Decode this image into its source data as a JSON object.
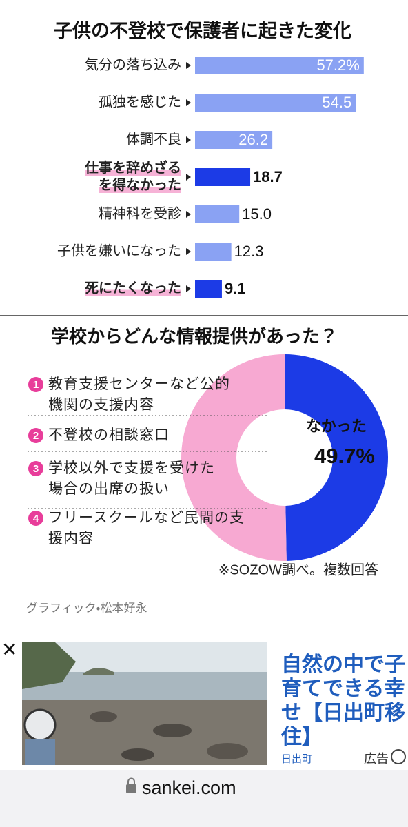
{
  "chart_data": [
    {
      "type": "bar",
      "orientation": "horizontal",
      "title": "子供の不登校で保護者に起きた変化",
      "categories": [
        "気分の落ち込み",
        "孤独を感じた",
        "体調不良",
        "仕事を辞めざる\nを得なかった",
        "精神科を受診",
        "子供を嫌いになった",
        "死にたくなった"
      ],
      "values": [
        57.2,
        54.5,
        26.2,
        18.7,
        15.0,
        12.3,
        9.1
      ],
      "value_labels": [
        "57.2%",
        "54.5",
        "26.2",
        "18.7",
        "15.0",
        "12.3",
        "9.1"
      ],
      "colors": [
        "#8aa2f3",
        "#8aa2f3",
        "#8aa2f3",
        "#1c3be6",
        "#8aa2f3",
        "#8aa2f3",
        "#1c3be6"
      ],
      "emphasized": [
        false,
        false,
        false,
        true,
        false,
        false,
        true
      ]
    },
    {
      "type": "donut",
      "title": "学校からどんな情報提供があった？",
      "categories": [
        "なかった",
        null
      ],
      "values": [
        49.7,
        50.3
      ],
      "value_labels": [
        "49.7%",
        null
      ],
      "colors": [
        "#1c3be6",
        "#f7a9d2"
      ],
      "options": [
        {
          "number": "1",
          "text": "教育支援センターなど公的\n機関の支援内容"
        },
        {
          "number": "2",
          "text": "不登校の相談窓口"
        },
        {
          "number": "3",
          "text": "学校以外で支援を受けた\n場合の出席の扱い"
        },
        {
          "number": "4",
          "text": "フリースクールなど民間の支\n援内容"
        }
      ],
      "note": "※SOZOW調べ。複数回答"
    }
  ],
  "credit": "グラフィック・松本好永",
  "ad": {
    "close": "✕",
    "title_lines": [
      "自然の中で子",
      "育てできる幸",
      "せ【日出町移",
      "住】"
    ],
    "advertiser": "日出町",
    "label": "広告"
  },
  "browser": {
    "url": "sankei.com"
  }
}
